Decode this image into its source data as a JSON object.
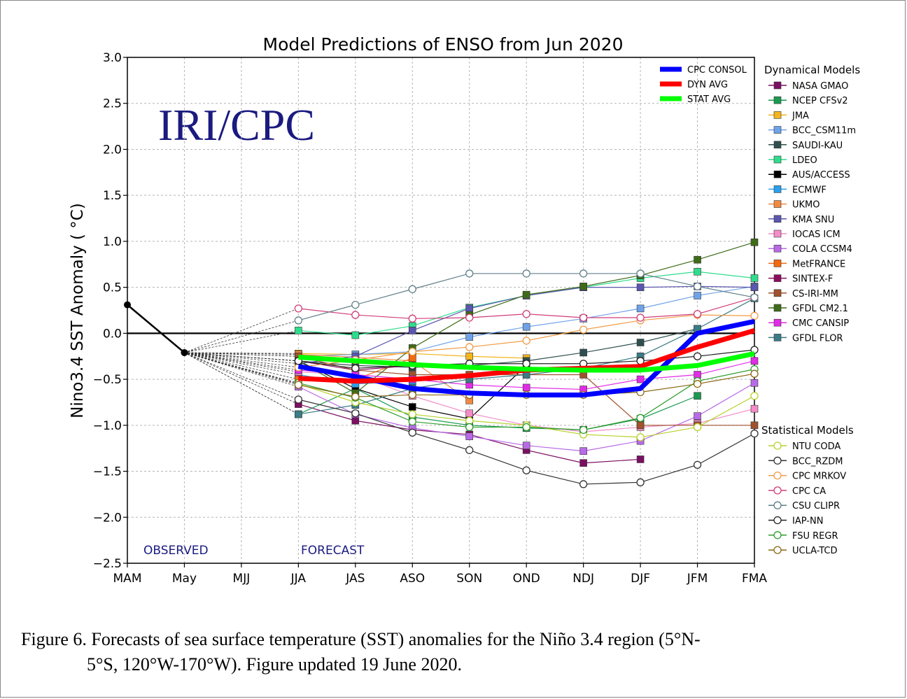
{
  "caption": {
    "line1": "Figure 6. Forecasts of sea surface temperature (SST) anomalies for the Niño 3.4 region (5°N-",
    "line2": "5°S, 120°W-170°W). Figure updated 19 June 2020."
  },
  "chart_data": {
    "type": "line",
    "title": "Model Predictions of ENSO from Jun 2020",
    "watermark": "IRI/CPC",
    "ylabel": "Nino3.4 SST Anomaly ( °C)",
    "ylim": [
      -2.5,
      3.0
    ],
    "yticks": [
      -2.5,
      -2.0,
      -1.5,
      -1.0,
      -0.5,
      0.0,
      0.5,
      1.0,
      1.5,
      2.0,
      2.5,
      3.0
    ],
    "ytick_labels": [
      "−2.5",
      "−2.0",
      "−1.5",
      "−1.0",
      "−0.5",
      "0.0",
      "0.5",
      "1.0",
      "1.5",
      "2.0",
      "2.5",
      "3.0"
    ],
    "categories": [
      "MAM",
      "May",
      "MJJ",
      "JJA",
      "JAS",
      "ASO",
      "SON",
      "OND",
      "NDJ",
      "DJF",
      "JFM",
      "FMA"
    ],
    "observed_label": "OBSERVED",
    "forecast_label": "FORECAST",
    "grid": true,
    "observed": {
      "x": [
        0,
        1
      ],
      "values": [
        0.31,
        -0.21
      ]
    },
    "consensus_legend_title": "",
    "dyn_legend_title": "Dynamical Models",
    "stat_legend_title": "Statistical Models",
    "consensus": [
      {
        "name": "CPC CONSOL",
        "color": "#0000ff",
        "values": [
          -0.36,
          -0.47,
          -0.6,
          -0.65,
          -0.67,
          -0.67,
          -0.6,
          0.0,
          0.13
        ]
      },
      {
        "name": "DYN AVG",
        "color": "#ff0000",
        "values": [
          -0.49,
          -0.52,
          -0.5,
          -0.46,
          -0.4,
          -0.38,
          -0.36,
          -0.15,
          0.03
        ]
      },
      {
        "name": "STAT AVG",
        "color": "#00ff00",
        "values": [
          -0.26,
          -0.3,
          -0.34,
          -0.37,
          -0.39,
          -0.4,
          -0.4,
          -0.35,
          -0.22
        ]
      }
    ],
    "dynamical": [
      {
        "name": "NASA GMAO",
        "color": "#7b0f62",
        "values": [
          -0.77,
          -0.95,
          -1.05,
          -1.1,
          -1.27,
          -1.41,
          -1.37
        ]
      },
      {
        "name": "NCEP CFSv2",
        "color": "#1a9a51",
        "values": [
          -0.88,
          -0.6,
          -0.91,
          -1.0,
          -1.03,
          -1.05,
          -0.93,
          -0.68
        ]
      },
      {
        "name": "JMA",
        "color": "#f2b51f",
        "values": [
          -0.22,
          -0.23,
          -0.22,
          -0.25,
          -0.27
        ]
      },
      {
        "name": "BCC_CSM11m",
        "color": "#6fa3e9",
        "values": [
          -0.25,
          -0.23,
          -0.2,
          -0.04,
          0.07,
          0.16,
          0.27,
          0.41,
          0.51
        ]
      },
      {
        "name": "SAUDI-KAU",
        "color": "#2f4f4f",
        "values": [
          -0.3,
          -0.35,
          -0.37,
          -0.35,
          -0.3,
          -0.21,
          -0.1,
          0.05
        ]
      },
      {
        "name": "LDEO",
        "color": "#2fdc8c",
        "values": [
          0.03,
          -0.02,
          0.08,
          0.28,
          0.41,
          0.5,
          0.6,
          0.67,
          0.6
        ]
      },
      {
        "name": "AUS/ACCESS",
        "color": "#000000",
        "values": [
          -0.3,
          -0.6,
          -0.8,
          -0.93,
          -0.35
        ]
      },
      {
        "name": "ECMWF",
        "color": "#2aa0ee",
        "values": [
          -0.45,
          -0.55,
          -0.52,
          -0.46,
          -0.42
        ]
      },
      {
        "name": "UKMO",
        "color": "#f08a43",
        "values": [
          -0.23,
          -0.26,
          -0.3,
          -0.73
        ]
      },
      {
        "name": "KMA SNU",
        "color": "#5b56ae",
        "values": [
          -0.33,
          -0.25,
          0.03,
          0.27,
          0.41,
          0.5,
          0.5,
          0.51,
          0.5
        ]
      },
      {
        "name": "IOCAS ICM",
        "color": "#f48cc8",
        "values": [
          -0.42,
          -0.45,
          -0.68,
          -0.87,
          -1.0,
          -1.07,
          -1.02,
          -0.98,
          -0.82
        ]
      },
      {
        "name": "COLA CCSM4",
        "color": "#b96ae7",
        "values": [
          -0.58,
          -0.88,
          -1.03,
          -1.12,
          -1.22,
          -1.28,
          -1.17,
          -0.9,
          -0.54
        ]
      },
      {
        "name": "MetFRANCE",
        "color": "#f36a10",
        "values": [
          -0.5,
          -0.5,
          -0.27
        ]
      },
      {
        "name": "SINTEX-F",
        "color": "#8a0e5c",
        "values": [
          -0.3,
          -0.4,
          -0.35
        ]
      },
      {
        "name": "CS-IRI-MM",
        "color": "#a0522d",
        "values": [
          -0.25,
          -0.4,
          -0.45,
          -0.45,
          -0.45,
          -0.45,
          -1.0,
          -1.0,
          -1.0
        ]
      },
      {
        "name": "GFDL CM2.1",
        "color": "#3e6b18",
        "values": [
          -0.3,
          -0.65,
          -0.16,
          0.2,
          0.42,
          0.51,
          0.63,
          0.8,
          0.99
        ]
      },
      {
        "name": "CMC CANSIP",
        "color": "#e12ce6",
        "values": [
          -0.4,
          -0.45,
          -0.5,
          -0.56,
          -0.59,
          -0.61,
          -0.5,
          -0.45,
          -0.3
        ]
      },
      {
        "name": "GFDL FLOR",
        "color": "#3b7c86",
        "values": [
          -0.88,
          -0.78,
          -0.6,
          -0.5,
          -0.45,
          -0.38,
          -0.25,
          0.05,
          0.38
        ]
      }
    ],
    "statistical": [
      {
        "name": "NTU CODA",
        "color": "#b6d22a",
        "values": [
          -0.55,
          -0.75,
          -0.88,
          -0.95,
          -1.0,
          -1.1,
          -1.13,
          -1.02,
          -0.68
        ]
      },
      {
        "name": "BCC_RZDM",
        "color": "#333333",
        "values": [
          -0.72,
          -0.87,
          -1.08,
          -1.27,
          -1.49,
          -1.64,
          -1.62,
          -1.43,
          -1.09
        ]
      },
      {
        "name": "CPC MRKOV",
        "color": "#f29b45",
        "values": [
          -0.37,
          -0.29,
          -0.2,
          -0.15,
          -0.08,
          0.04,
          0.14,
          0.2,
          0.19
        ]
      },
      {
        "name": "CPC CA",
        "color": "#cf3d79",
        "values": [
          0.27,
          0.2,
          0.16,
          0.17,
          0.21,
          0.17,
          0.17,
          0.21,
          0.39
        ]
      },
      {
        "name": "CSU CLIPR",
        "color": "#5f7f8a",
        "values": [
          0.14,
          0.31,
          0.48,
          0.65,
          0.65,
          0.65,
          0.65,
          0.51,
          0.39
        ]
      },
      {
        "name": "IAP-NN",
        "color": "#222222",
        "values": [
          -0.3,
          -0.38,
          -0.35,
          -0.33,
          -0.33,
          -0.33,
          -0.3,
          -0.25,
          -0.18
        ]
      },
      {
        "name": "FSU REGR",
        "color": "#2e9e2e",
        "values": [
          -0.54,
          -0.7,
          -0.96,
          -1.02,
          -1.02,
          -1.05,
          -0.92,
          -0.52,
          -0.39
        ]
      },
      {
        "name": "UCLA-TCD",
        "color": "#8b6914",
        "values": [
          -0.56,
          -0.69,
          -0.67,
          -0.67,
          -0.67,
          -0.67,
          -0.64,
          -0.55,
          -0.44
        ]
      }
    ]
  }
}
